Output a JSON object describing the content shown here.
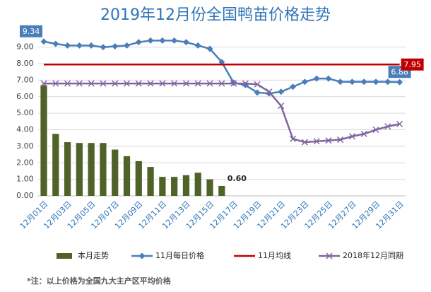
{
  "chart_data": {
    "type": "combo",
    "title": "2019年12月份全国鸭苗价格走势",
    "footnote": "*注：以上价格为全国九大主产区平均价格",
    "categories": [
      "12月01日",
      null,
      "12月03日",
      null,
      "12月05日",
      null,
      "12月07日",
      null,
      "12月09日",
      null,
      "12月11日",
      null,
      "12月13日",
      null,
      "12月15日",
      null,
      "12月17日",
      null,
      "12月19日",
      null,
      "12月21日",
      null,
      "12月23日",
      null,
      "12月25日",
      null,
      "12月27日",
      null,
      "12月29日",
      null,
      "12月31日"
    ],
    "ylim": [
      0,
      9.5
    ],
    "yticks": [
      {
        "value": 0,
        "label": "0.00"
      },
      {
        "value": 1,
        "label": "1.00"
      },
      {
        "value": 2,
        "label": "2.00"
      },
      {
        "value": 3,
        "label": "3.00"
      },
      {
        "value": 4,
        "label": "4.00"
      },
      {
        "value": 5,
        "label": "5.00"
      },
      {
        "value": 6,
        "label": "6.00"
      },
      {
        "value": 7,
        "label": "7.00"
      },
      {
        "value": 8,
        "label": "8.00"
      },
      {
        "value": 9,
        "label": "9.00"
      }
    ],
    "grid": true,
    "legend": "bottom",
    "series": [
      {
        "name": "本月走势",
        "type": "bar",
        "color": "#4f6228",
        "values": [
          6.7,
          3.75,
          3.25,
          3.2,
          3.2,
          3.2,
          2.8,
          2.4,
          2.1,
          1.75,
          1.15,
          1.15,
          1.25,
          1.4,
          1.0,
          0.6,
          null,
          null,
          null,
          null,
          null,
          null,
          null,
          null,
          null,
          null,
          null,
          null,
          null,
          null,
          null
        ],
        "value_labels": [
          null,
          null,
          null,
          null,
          null,
          null,
          null,
          null,
          null,
          null,
          null,
          null,
          null,
          null,
          null,
          "0.60",
          null,
          null,
          null,
          null,
          null,
          null,
          null,
          null,
          null,
          null,
          null,
          null,
          null,
          null,
          null
        ]
      },
      {
        "name": "11月每日价格",
        "type": "line",
        "marker": "diamond",
        "color": "#4a7ebb",
        "values": [
          9.34,
          9.2,
          9.1,
          9.1,
          9.1,
          9.0,
          9.05,
          9.1,
          9.3,
          9.4,
          9.4,
          9.4,
          9.3,
          9.1,
          8.9,
          8.1,
          6.85,
          6.7,
          6.25,
          6.2,
          6.3,
          6.6,
          6.9,
          7.1,
          7.1,
          6.9,
          6.9,
          6.9,
          6.9,
          6.9,
          6.88
        ],
        "value_labels": [
          "9.34",
          null,
          null,
          null,
          null,
          null,
          null,
          null,
          null,
          null,
          null,
          null,
          null,
          null,
          null,
          null,
          null,
          null,
          null,
          null,
          null,
          null,
          null,
          null,
          null,
          null,
          null,
          null,
          null,
          null,
          "6.88"
        ]
      },
      {
        "name": "11月均线",
        "type": "line",
        "marker": "none",
        "color": "#c00000",
        "values": [
          7.95,
          7.95,
          7.95,
          7.95,
          7.95,
          7.95,
          7.95,
          7.95,
          7.95,
          7.95,
          7.95,
          7.95,
          7.95,
          7.95,
          7.95,
          7.95,
          7.95,
          7.95,
          7.95,
          7.95,
          7.95,
          7.95,
          7.95,
          7.95,
          7.95,
          7.95,
          7.95,
          7.95,
          7.95,
          7.95,
          7.95
        ],
        "value_labels": [
          null,
          null,
          null,
          null,
          null,
          null,
          null,
          null,
          null,
          null,
          null,
          null,
          null,
          null,
          null,
          null,
          null,
          null,
          null,
          null,
          null,
          null,
          null,
          null,
          null,
          null,
          null,
          null,
          null,
          null,
          "7.95"
        ]
      },
      {
        "name": "2018年12月同期",
        "type": "line",
        "marker": "x",
        "color": "#8064a2",
        "values": [
          6.8,
          6.8,
          6.8,
          6.8,
          6.8,
          6.8,
          6.8,
          6.8,
          6.8,
          6.8,
          6.8,
          6.8,
          6.8,
          6.8,
          6.8,
          6.8,
          6.8,
          6.8,
          6.75,
          6.3,
          5.45,
          3.45,
          3.25,
          3.3,
          3.35,
          3.4,
          3.6,
          3.75,
          4.0,
          4.2,
          4.35
        ]
      }
    ]
  }
}
